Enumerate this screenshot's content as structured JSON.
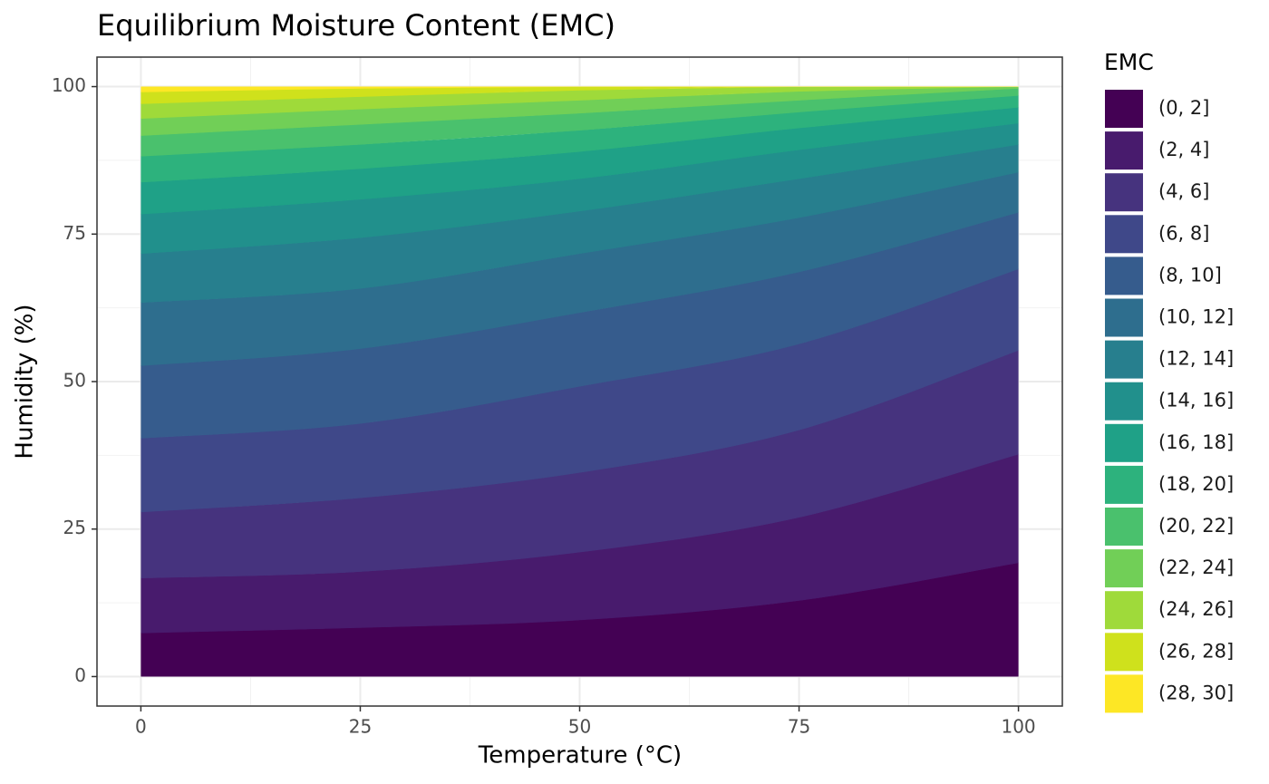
{
  "chart_data": {
    "type": "filled-contour",
    "title": "Equilibrium Moisture Content (EMC)",
    "x_label": "Temperature (°C)",
    "y_label": "Humidity (%)",
    "legend_title": "EMC",
    "xlim": [
      -5,
      105
    ],
    "ylim": [
      -5,
      105
    ],
    "xticks": [
      0,
      25,
      50,
      75,
      100
    ],
    "yticks": [
      0,
      25,
      50,
      75,
      100
    ],
    "x_minor_ticks": [
      12.5,
      37.5,
      62.5,
      87.5
    ],
    "y_minor_ticks": [
      12.5,
      37.5,
      62.5,
      87.5
    ],
    "grid": true,
    "ydomain": [
      0,
      100
    ],
    "x": [
      0,
      25,
      50,
      75,
      100
    ],
    "contours": [
      {
        "level": 2,
        "values": [
          7.4,
          8.3,
          9.6,
          12.9,
          19.3
        ]
      },
      {
        "level": 4,
        "values": [
          16.7,
          17.8,
          21.1,
          27.0,
          37.7
        ]
      },
      {
        "level": 6,
        "values": [
          27.9,
          30.3,
          34.6,
          41.8,
          55.3
        ]
      },
      {
        "level": 8,
        "values": [
          40.4,
          42.9,
          49.2,
          56.4,
          69.1
        ]
      },
      {
        "level": 10,
        "values": [
          52.7,
          55.6,
          61.7,
          68.6,
          78.7
        ]
      },
      {
        "level": 12,
        "values": [
          63.4,
          65.8,
          71.7,
          77.8,
          85.5
        ]
      },
      {
        "level": 14,
        "values": [
          71.7,
          74.4,
          78.9,
          84.4,
          90.2
        ]
      },
      {
        "level": 16,
        "values": [
          78.4,
          80.9,
          84.4,
          89.3,
          93.8
        ]
      },
      {
        "level": 18,
        "values": [
          83.8,
          86.1,
          89.0,
          93.0,
          96.5
        ]
      },
      {
        "level": 20,
        "values": [
          88.2,
          90.2,
          92.6,
          95.7,
          98.5
        ]
      },
      {
        "level": 22,
        "values": [
          91.7,
          93.6,
          95.5,
          97.7,
          99.7
        ]
      },
      {
        "level": 24,
        "values": [
          94.6,
          96.2,
          97.7,
          99.2,
          100
        ]
      },
      {
        "level": 26,
        "values": [
          97.1,
          98.3,
          99.4,
          100,
          100
        ]
      },
      {
        "level": 28,
        "values": [
          99.1,
          99.7,
          100,
          100,
          100
        ]
      }
    ],
    "series": [
      {
        "name": "(0, 2]",
        "color": "#440154"
      },
      {
        "name": "(2, 4]",
        "color": "#481b6d"
      },
      {
        "name": "(4, 6]",
        "color": "#46337e"
      },
      {
        "name": "(6, 8]",
        "color": "#3f4889"
      },
      {
        "name": "(8, 10]",
        "color": "#365c8d"
      },
      {
        "name": "(10, 12]",
        "color": "#2e6e8e"
      },
      {
        "name": "(12, 14]",
        "color": "#277f8e"
      },
      {
        "name": "(14, 16]",
        "color": "#21908c"
      },
      {
        "name": "(16, 18]",
        "color": "#1fa187"
      },
      {
        "name": "(18, 20]",
        "color": "#2db27d"
      },
      {
        "name": "(20, 22]",
        "color": "#4ac16d"
      },
      {
        "name": "(22, 24]",
        "color": "#71cf57"
      },
      {
        "name": "(24, 26]",
        "color": "#9fda3a"
      },
      {
        "name": "(26, 28]",
        "color": "#cfe11c"
      },
      {
        "name": "(28, 30]",
        "color": "#fde725"
      }
    ]
  }
}
